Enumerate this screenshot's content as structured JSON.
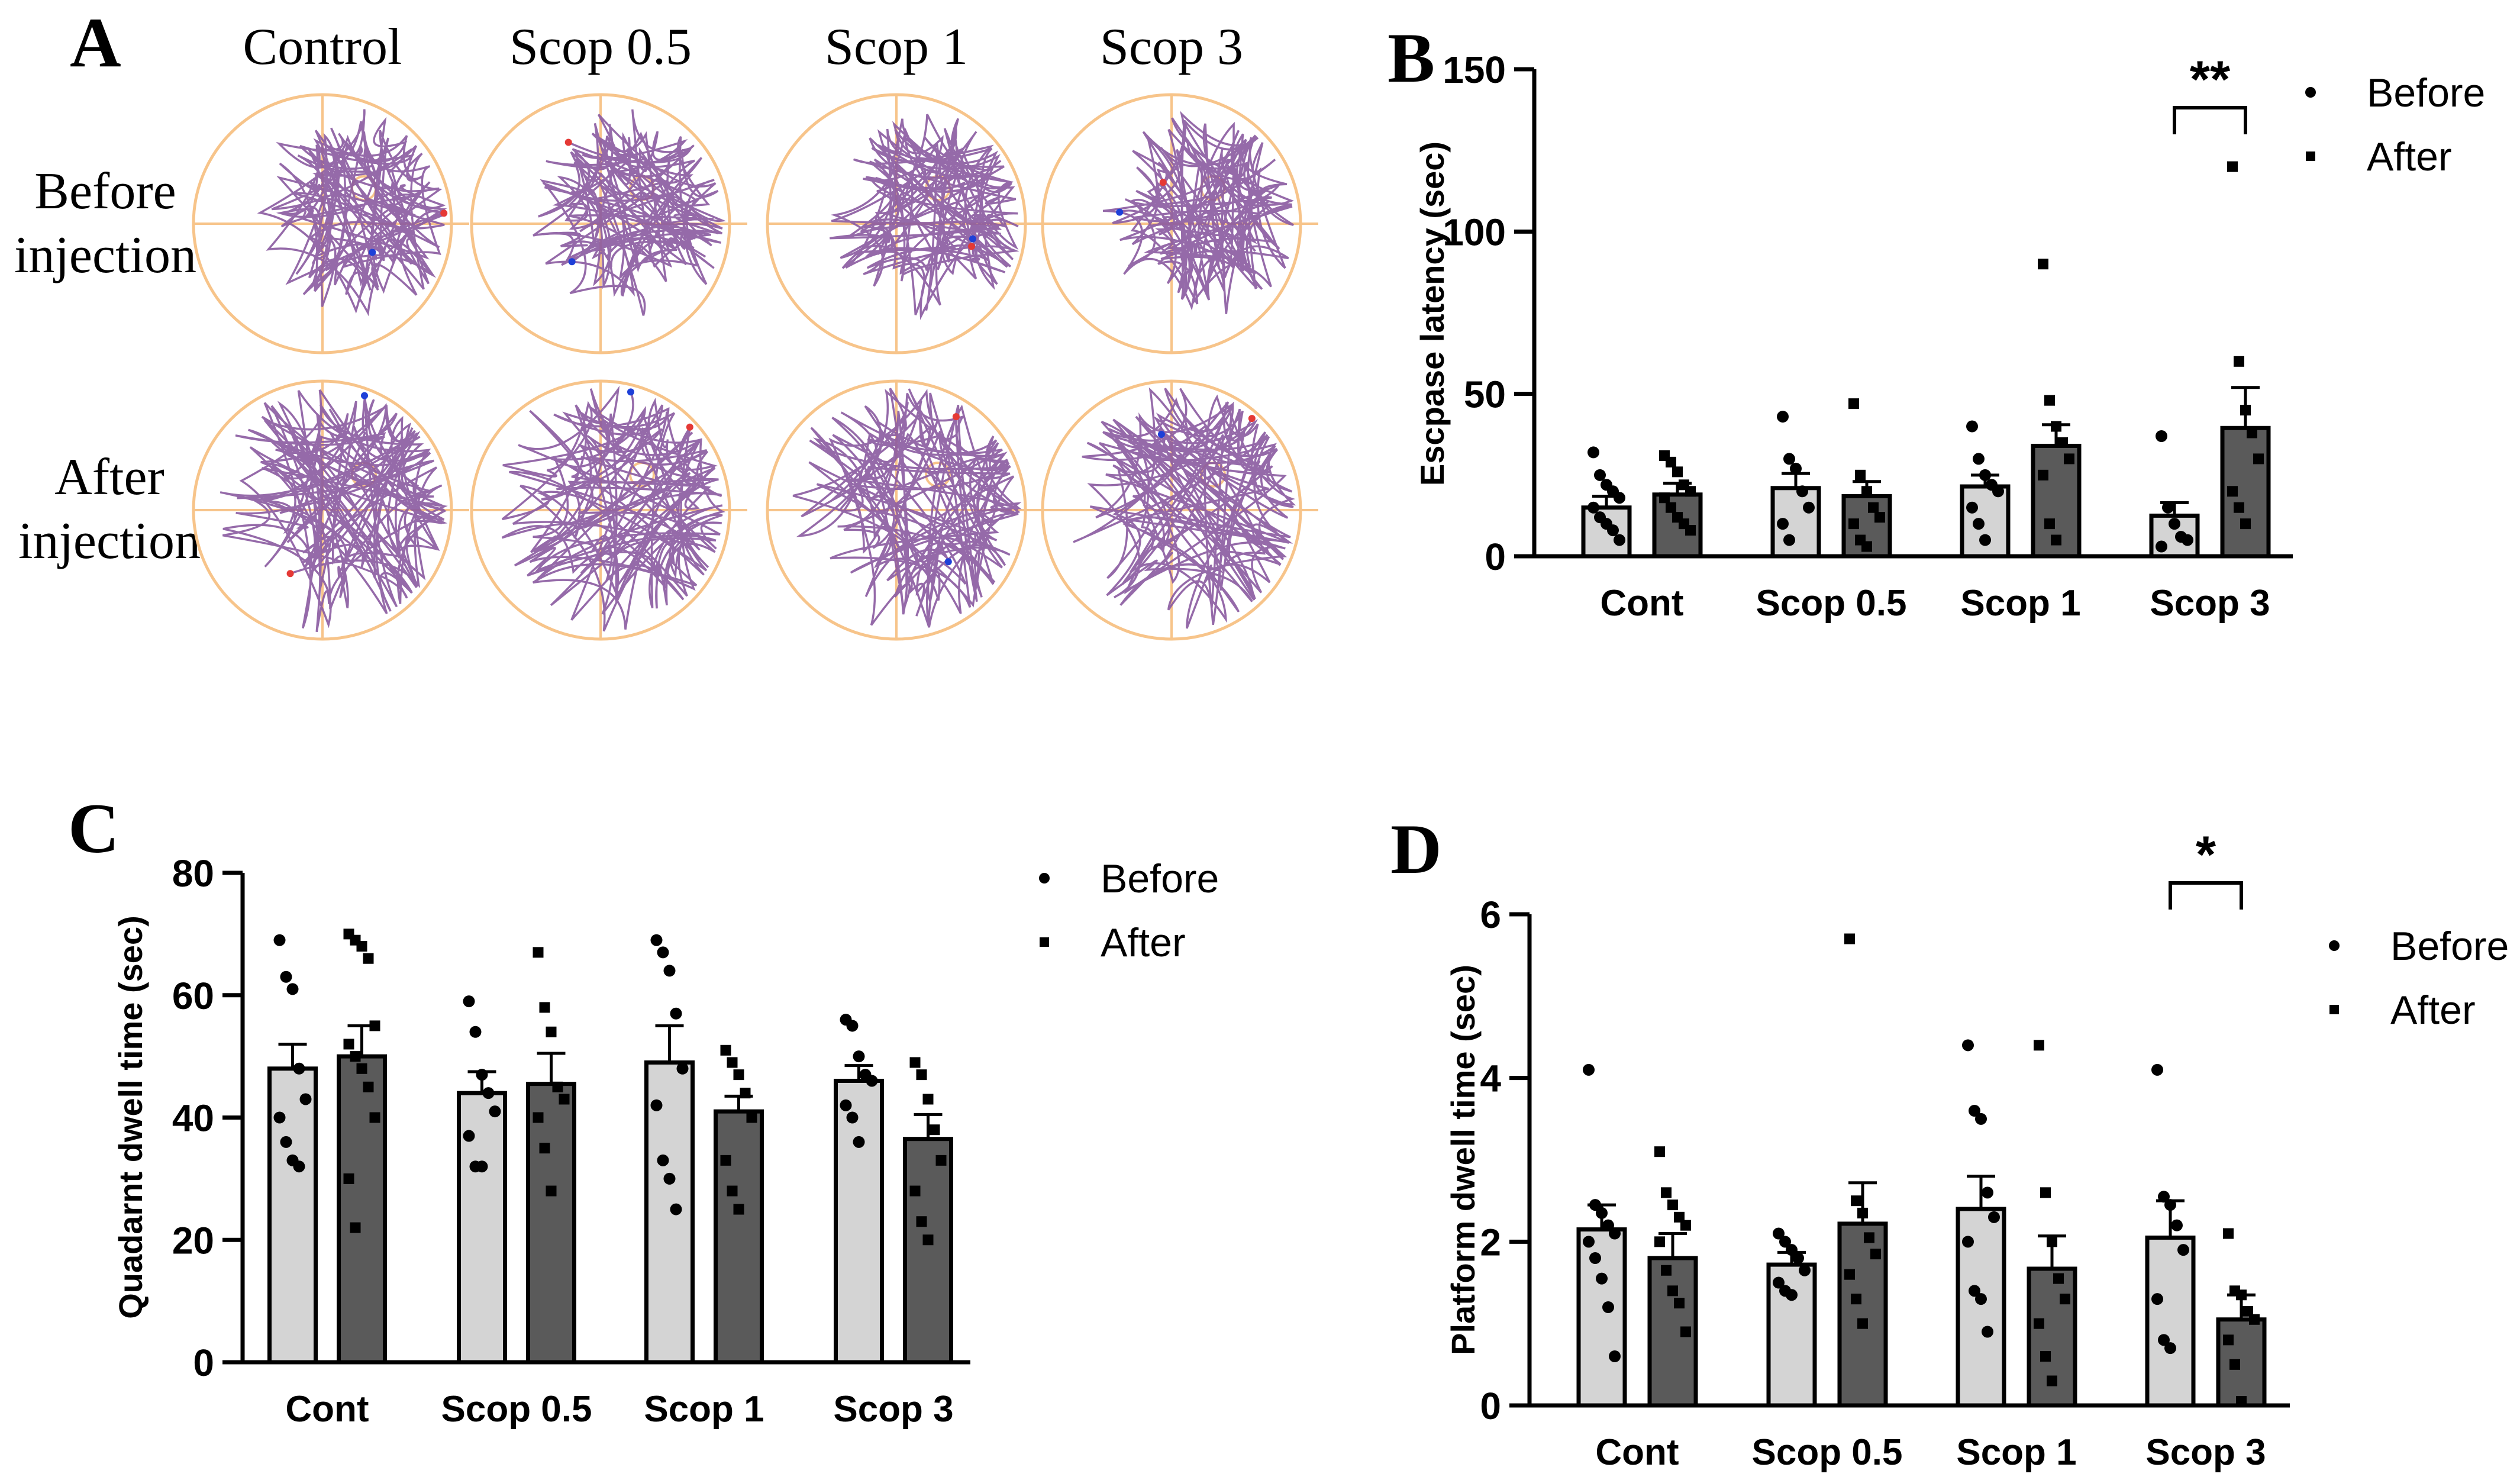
{
  "panel_a": {
    "letter": "A",
    "columns": [
      "Control",
      "Scop 0.5",
      "Scop 1",
      "Scop 3"
    ],
    "rows": [
      {
        "line1": "Before",
        "line2": "injection"
      },
      {
        "line1": "After",
        "line2": "injection"
      }
    ],
    "colors": {
      "pool": "#f7c48a",
      "path": "#8a5aa0",
      "start": "#e53935",
      "end": "#1e40d8"
    }
  },
  "legend": {
    "before": "Before",
    "after": "After"
  },
  "colors": {
    "before_bar": "#d4d4d4",
    "after_bar": "#5a5a5a",
    "dots": "#000000",
    "axis": "#000000"
  },
  "chart_data": [
    {
      "panel": "B",
      "type": "bar",
      "categories": [
        "Cont",
        "Scop 0.5",
        "Scop 1",
        "Scop 3"
      ],
      "ylabel": "Escpase latency (sec)",
      "ylim": [
        0,
        150
      ],
      "yticks": [
        0,
        50,
        100,
        150
      ],
      "legend_position": "top-right",
      "series": [
        {
          "name": "Before",
          "values": [
            15,
            21,
            21.5,
            12.5
          ],
          "errors": [
            3.5,
            4.5,
            3.5,
            4
          ],
          "points": [
            [
              32,
              25,
              22,
              20,
              18,
              15,
              12,
              10,
              8,
              5
            ],
            [
              43,
              30,
              27,
              20,
              15,
              10,
              5
            ],
            [
              40,
              30,
              25,
              22,
              20,
              15,
              10,
              5
            ],
            [
              37,
              15,
              10,
              6,
              5,
              3
            ]
          ]
        },
        {
          "name": "After",
          "values": [
            19,
            18.5,
            34,
            39.5
          ],
          "errors": [
            3.5,
            4.5,
            6.5,
            12.5
          ],
          "points": [
            [
              31,
              29,
              26,
              22,
              20,
              18,
              15,
              12,
              10,
              8
            ],
            [
              47,
              25,
              20,
              15,
              12,
              10,
              5,
              3
            ],
            [
              90,
              48,
              40,
              35,
              30,
              25,
              10,
              5
            ],
            [
              120,
              60,
              45,
              38,
              30,
              20,
              15,
              10
            ]
          ]
        }
      ],
      "annotations": [
        {
          "category": "Scop 3",
          "text": "**"
        }
      ]
    },
    {
      "panel": "C",
      "type": "bar",
      "categories": [
        "Cont",
        "Scop 0.5",
        "Scop 1",
        "Scop 3"
      ],
      "ylabel": "Quadarnt dwell time (sec)",
      "ylim": [
        0,
        80
      ],
      "yticks": [
        0,
        20,
        40,
        60,
        80
      ],
      "legend_position": "top-right",
      "series": [
        {
          "name": "Before",
          "values": [
            48,
            44,
            49,
            46
          ],
          "errors": [
            4,
            3.5,
            6,
            2.5
          ],
          "points": [
            [
              69,
              63,
              61,
              48,
              43,
              40,
              36,
              33,
              32
            ],
            [
              59,
              54,
              47,
              44,
              41,
              37,
              32,
              32
            ],
            [
              69,
              67,
              64,
              57,
              48,
              42,
              33,
              30,
              25
            ],
            [
              56,
              55,
              50,
              47,
              46,
              42,
              40,
              36
            ]
          ]
        },
        {
          "name": "After",
          "values": [
            50,
            45.5,
            41,
            36.5
          ],
          "errors": [
            5,
            5,
            2.5,
            4
          ],
          "points": [
            [
              70,
              69,
              68,
              66,
              55,
              52,
              50,
              48,
              45,
              40,
              30,
              22
            ],
            [
              67,
              58,
              54,
              45,
              43,
              40,
              35,
              28
            ],
            [
              51,
              49,
              47,
              44,
              40,
              33,
              28,
              25
            ],
            [
              49,
              47,
              43,
              38,
              33,
              28,
              23,
              20
            ]
          ]
        }
      ],
      "annotations": []
    },
    {
      "panel": "D",
      "type": "bar",
      "categories": [
        "Cont",
        "Scop 0.5",
        "Scop 1",
        "Scop 3"
      ],
      "ylabel": "Platform dwell time (sec)",
      "ylim": [
        0,
        6
      ],
      "yticks": [
        0,
        2,
        4,
        6
      ],
      "legend_position": "top-right",
      "series": [
        {
          "name": "Before",
          "values": [
            2.15,
            1.72,
            2.4,
            2.05
          ],
          "errors": [
            0.3,
            0.15,
            0.4,
            0.45
          ],
          "points": [
            [
              4.1,
              2.45,
              2.35,
              2.2,
              2.1,
              2.0,
              1.8,
              1.55,
              1.2,
              0.6
            ],
            [
              2.1,
              2.0,
              1.9,
              1.8,
              1.65,
              1.5,
              1.4,
              1.35
            ],
            [
              4.4,
              3.6,
              3.5,
              2.6,
              2.3,
              2.0,
              1.4,
              1.3,
              0.9
            ],
            [
              4.1,
              2.55,
              2.45,
              2.2,
              1.9,
              1.3,
              0.8,
              0.7
            ]
          ]
        },
        {
          "name": "After",
          "values": [
            1.8,
            2.22,
            1.67,
            1.05
          ],
          "errors": [
            0.3,
            0.5,
            0.4,
            0.3
          ],
          "points": [
            [
              3.1,
              2.6,
              2.45,
              2.3,
              2.2,
              2.0,
              1.65,
              1.4,
              1.25,
              0.9
            ],
            [
              5.7,
              2.5,
              2.35,
              2.05,
              1.85,
              1.6,
              1.3,
              1.0
            ],
            [
              4.4,
              2.6,
              2.0,
              1.55,
              1.3,
              1.0,
              0.6,
              0.3
            ],
            [
              2.1,
              1.4,
              1.35,
              1.15,
              1.05,
              0.8,
              0.5,
              0.05
            ]
          ]
        }
      ],
      "annotations": [
        {
          "category": "Scop 3",
          "text": "*"
        }
      ]
    }
  ]
}
